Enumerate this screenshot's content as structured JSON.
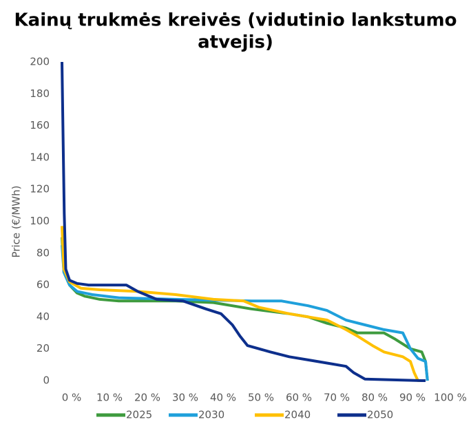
{
  "chart_data": {
    "type": "line",
    "title": [
      "Kainų trukmės kreivės (vidutinio lankstumo",
      "atvejis)"
    ],
    "ylabel": "Price (€/MWh)",
    "xlim": [
      0,
      100
    ],
    "ylim": [
      0,
      200
    ],
    "xticks": [
      {
        "value": 0,
        "label": "0 %"
      },
      {
        "value": 10,
        "label": "10 %"
      },
      {
        "value": 20,
        "label": "20 %"
      },
      {
        "value": 30,
        "label": "30 %"
      },
      {
        "value": 40,
        "label": "40 %"
      },
      {
        "value": 50,
        "label": "50 %"
      },
      {
        "value": 60,
        "label": "60 %"
      },
      {
        "value": 70,
        "label": "70 %"
      },
      {
        "value": 80,
        "label": "80 %"
      },
      {
        "value": 90,
        "label": "90 %"
      },
      {
        "value": 100,
        "label": "100 %"
      }
    ],
    "yticks": [
      0,
      20,
      40,
      60,
      80,
      100,
      120,
      140,
      160,
      180,
      200
    ],
    "grid": false,
    "legend": "bottom",
    "series": [
      {
        "name": "2025",
        "color": "#3e9b3e",
        "x": [
          0,
          0.5,
          2,
          4,
          6,
          10,
          15,
          30,
          40,
          50,
          60,
          65,
          70,
          75,
          78,
          85,
          88,
          92,
          95,
          96,
          96.5
        ],
        "values": [
          90,
          68,
          60,
          55,
          53,
          51,
          50,
          50,
          49,
          45,
          42,
          40,
          36,
          33,
          30,
          30,
          26,
          20,
          18,
          12,
          0
        ]
      },
      {
        "name": "2030",
        "color": "#1fa0db",
        "x": [
          0,
          0.5,
          2,
          4,
          8,
          15,
          30,
          50,
          58,
          65,
          70,
          75,
          80,
          85,
          90,
          92,
          94,
          96,
          96.5
        ],
        "values": [
          85,
          68,
          60,
          56,
          54,
          52,
          51,
          50,
          50,
          47,
          44,
          38,
          35,
          32,
          30,
          20,
          14,
          12,
          0
        ]
      },
      {
        "name": "2040",
        "color": "#ffc000",
        "x": [
          0,
          0.5,
          2,
          5,
          10,
          20,
          30,
          40,
          48,
          52,
          60,
          70,
          75,
          78,
          82,
          85,
          90,
          92,
          93,
          94,
          96
        ],
        "values": [
          97,
          70,
          62,
          58,
          57,
          56,
          54,
          51,
          50,
          46,
          42,
          38,
          32,
          28,
          22,
          18,
          15,
          12,
          5,
          0,
          0
        ]
      },
      {
        "name": "2050",
        "color": "#0d2f8c",
        "x": [
          0,
          0.3,
          0.6,
          1,
          2,
          4,
          7,
          10,
          17,
          20,
          25,
          32,
          38,
          42,
          45,
          47,
          49,
          55,
          60,
          65,
          70,
          75,
          77,
          80,
          95,
          96
        ],
        "values": [
          200,
          150,
          105,
          70,
          63,
          61,
          60,
          60,
          60,
          56,
          51,
          50,
          45,
          42,
          35,
          28,
          22,
          18,
          15,
          13,
          11,
          9,
          5,
          1,
          0,
          0
        ]
      }
    ]
  }
}
